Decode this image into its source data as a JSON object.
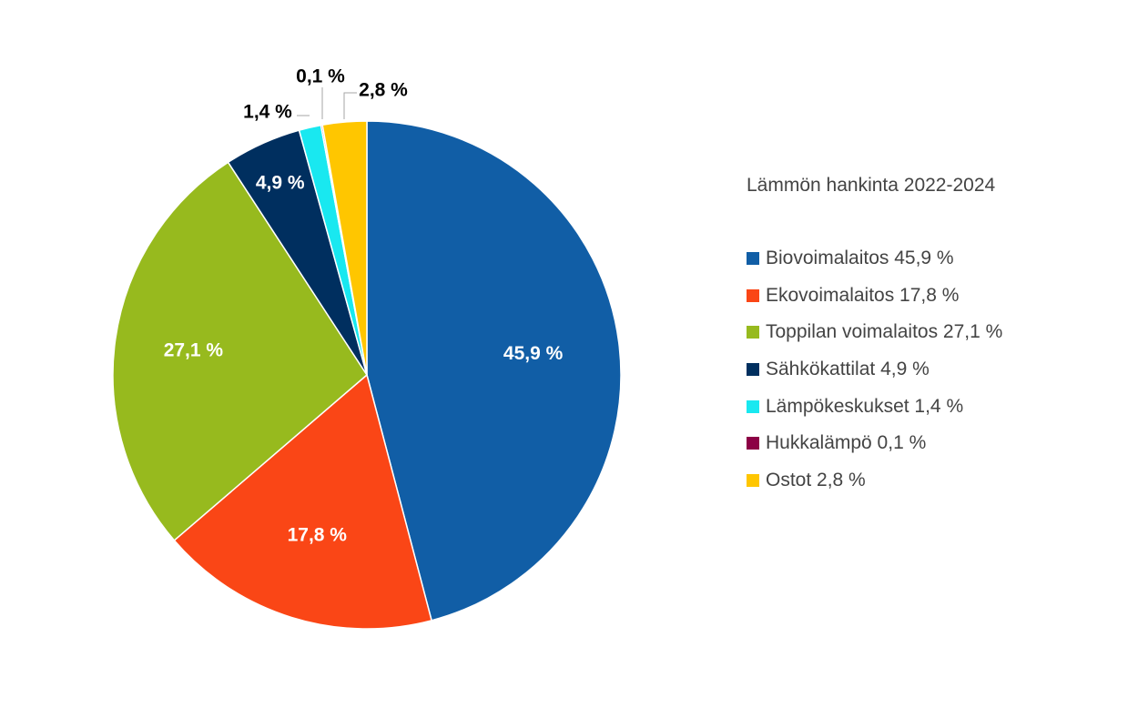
{
  "chart_data": {
    "type": "pie",
    "legend_title": "Lämmön hankinta 2022-2024",
    "legend_position": "right",
    "slices": [
      {
        "legend": "Biovoimalaitos 45,9 %",
        "value": 45.9,
        "label": "45,9 %",
        "color": "#115EA6",
        "label_color": "#ffffff"
      },
      {
        "legend": "Ekovoimalaitos 17,8 %",
        "value": 17.8,
        "label": "17,8 %",
        "color": "#FA4616",
        "label_color": "#ffffff"
      },
      {
        "legend": "Toppilan voimalaitos 27,1 %",
        "value": 27.1,
        "label": "27,1 %",
        "color": "#97BA1E",
        "label_color": "#ffffff"
      },
      {
        "legend": "Sähkökattilat 4,9 %",
        "value": 4.9,
        "label": "4,9 %",
        "color": "#002F5F",
        "label_color": "#ffffff"
      },
      {
        "legend": "Lämpökeskukset 1,4 %",
        "value": 1.4,
        "label": "1,4 %",
        "color": "#19E8F0",
        "label_color": "#000000"
      },
      {
        "legend": "Hukkalämpö 0,1 %",
        "value": 0.1,
        "label": "0,1 %",
        "color": "#8C0045",
        "label_color": "#000000"
      },
      {
        "legend": "Ostot 2,8 %",
        "value": 2.8,
        "label": "2,8 %",
        "color": "#FFC600",
        "label_color": "#000000"
      }
    ]
  }
}
